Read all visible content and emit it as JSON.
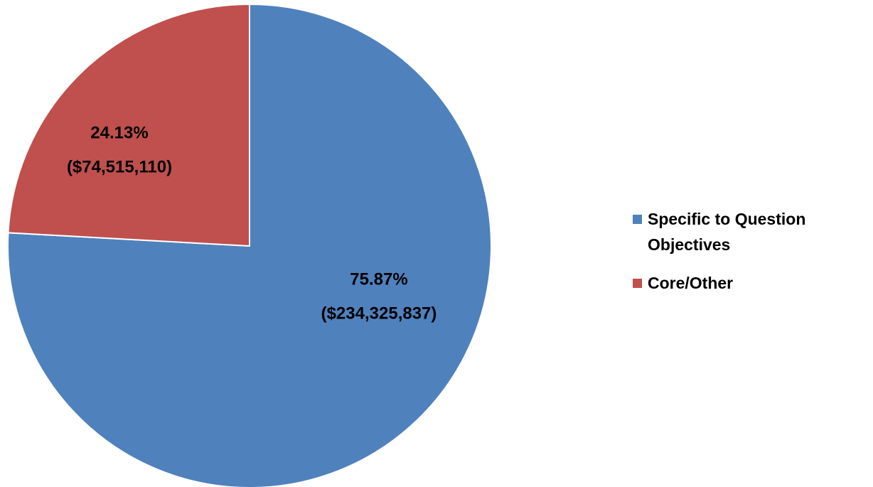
{
  "chart_data": {
    "type": "pie",
    "categories": [
      "Specific to Question Objectives",
      "Core/Other"
    ],
    "values": [
      75.87,
      24.13
    ],
    "value_labels": [
      "75.87%",
      "24.13%"
    ],
    "amounts": [
      234325837,
      74515110
    ],
    "amount_labels": [
      "($234,325,837)",
      "($74,515,110)"
    ],
    "colors": [
      "#4f81bd",
      "#c0504d"
    ],
    "legend": "right"
  }
}
